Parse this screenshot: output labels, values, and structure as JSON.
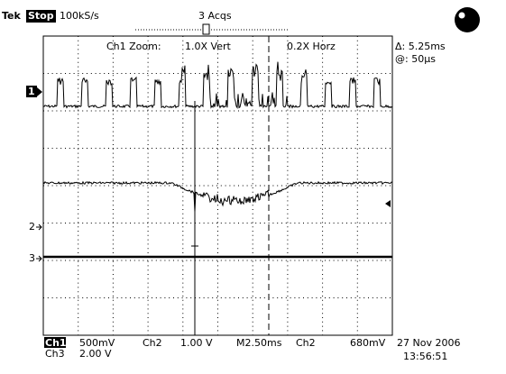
{
  "header": {
    "brand": "Tek",
    "state": "Stop",
    "rate": "100kS/s",
    "acquisitions": "3 Acqs"
  },
  "zoom": {
    "label": "Ch1 Zoom:",
    "vertical": "1.0X Vert",
    "horizontal": "0.2X Horz"
  },
  "cursor": {
    "delta": "Δ: 5.25ms",
    "position": "@: 50µs"
  },
  "markers": [
    "1",
    "2",
    "3"
  ],
  "footer": {
    "ch1": "Ch1",
    "ch1_scale": "500mV",
    "ch2": "Ch2",
    "ch2_scale": "1.00 V",
    "timebase": "M2.50ms",
    "trigger_source": "Ch2",
    "trigger_level": "680mV",
    "ch3": "Ch3",
    "ch3_scale": "2.00 V",
    "date": "27 Nov 2006",
    "time": "13:56:51"
  }
}
